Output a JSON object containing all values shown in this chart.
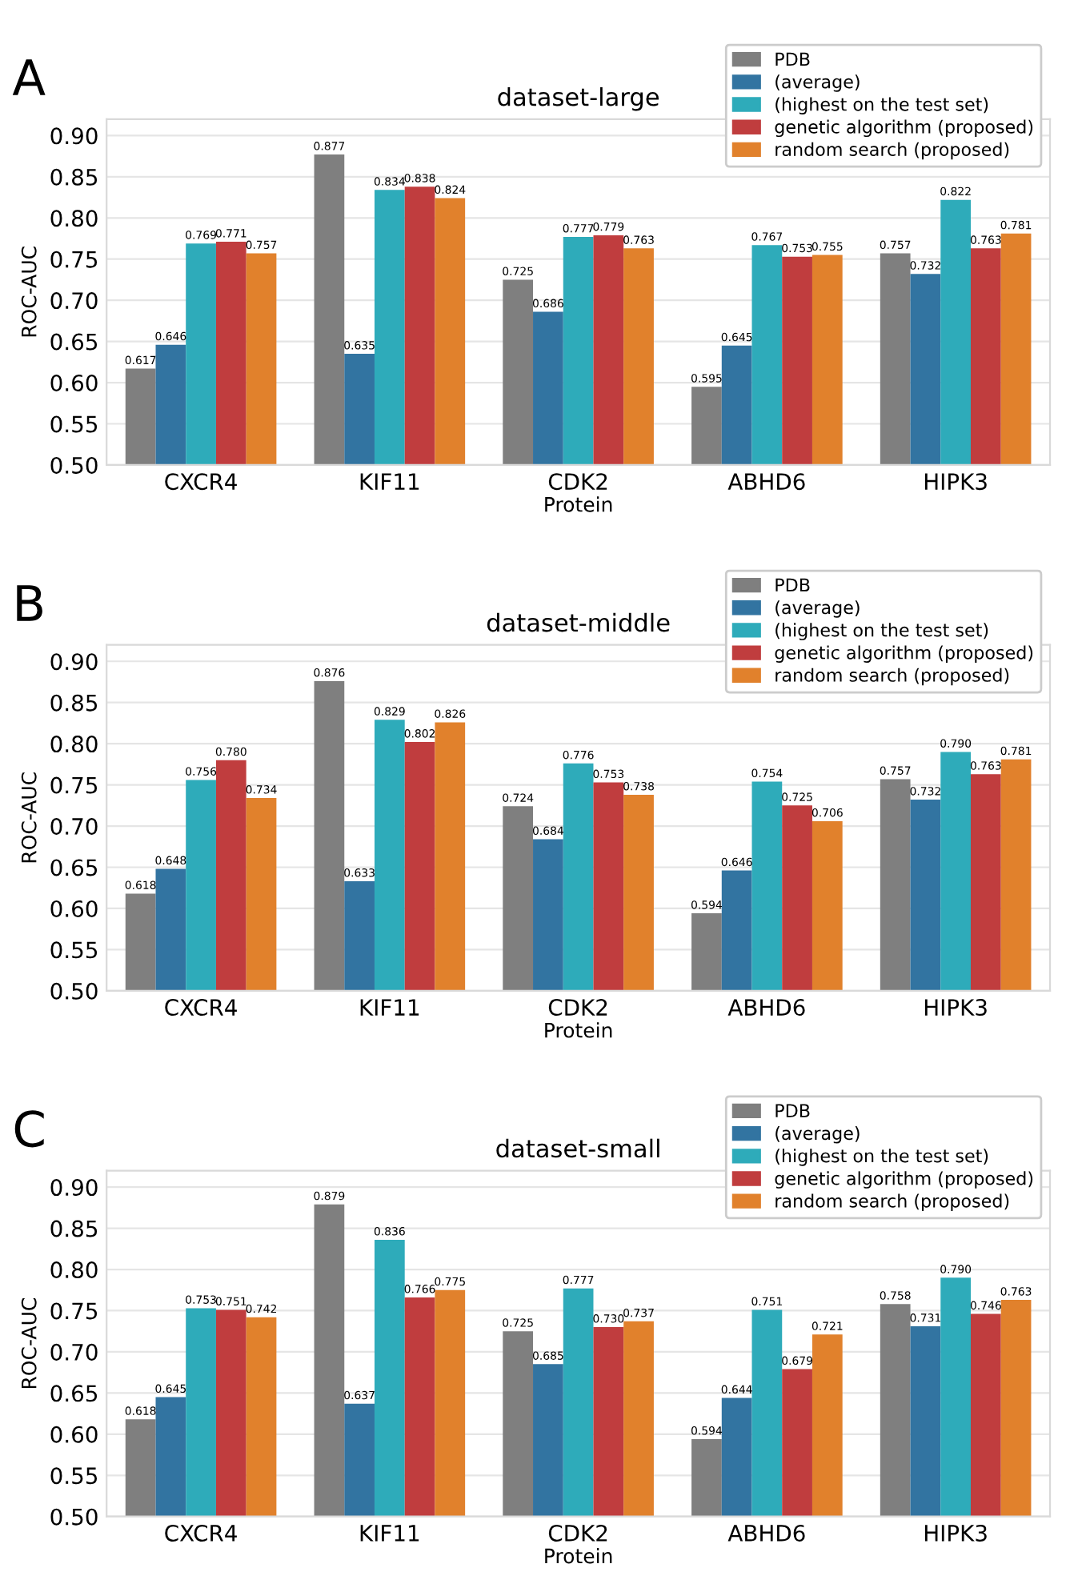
{
  "chart_data": [
    {
      "type": "bar",
      "title": "dataset-large",
      "xlabel": "Protein",
      "ylabel": "ROC-AUC",
      "annotations": [
        "A"
      ],
      "categories": [
        "CXCR4",
        "KIF11",
        "CDK2",
        "ABHD6",
        "HIPK3"
      ],
      "ylim": [
        0.5,
        0.92
      ],
      "yticks": [
        {
          "value": 0.5,
          "label": "0.50"
        },
        {
          "value": 0.55,
          "label": "0.55"
        },
        {
          "value": 0.6,
          "label": "0.60"
        },
        {
          "value": 0.65,
          "label": "0.65"
        },
        {
          "value": 0.7,
          "label": "0.70"
        },
        {
          "value": 0.75,
          "label": "0.75"
        },
        {
          "value": 0.8,
          "label": "0.80"
        },
        {
          "value": 0.85,
          "label": "0.85"
        },
        {
          "value": 0.9,
          "label": "0.90"
        }
      ],
      "grid": "y",
      "legend": "top right",
      "series": [
        {
          "name": "PDB",
          "color": "#7f7f7f",
          "values": [
            0.617,
            0.877,
            0.725,
            0.595,
            0.757
          ],
          "value_labels": [
            "0.617",
            "0.877",
            "0.725",
            "0.595",
            "0.757"
          ]
        },
        {
          "name": "(average)",
          "color": "#3274a1",
          "values": [
            0.646,
            0.635,
            0.686,
            0.645,
            0.732
          ],
          "value_labels": [
            "0.646",
            "0.635",
            "0.686",
            "0.645",
            "0.732"
          ]
        },
        {
          "name": "(highest on the test set)",
          "color": "#2eabba",
          "values": [
            0.769,
            0.834,
            0.777,
            0.767,
            0.822
          ],
          "value_labels": [
            "0.769",
            "0.834",
            "0.777",
            "0.767",
            "0.822"
          ]
        },
        {
          "name": "genetic algorithm (proposed)",
          "color": "#c03d3e",
          "values": [
            0.771,
            0.838,
            0.779,
            0.753,
            0.763
          ],
          "value_labels": [
            "0.771",
            "0.838",
            "0.779",
            "0.753",
            "0.763"
          ]
        },
        {
          "name": "random search (proposed)",
          "color": "#e1812c",
          "values": [
            0.757,
            0.824,
            0.763,
            0.755,
            0.781
          ],
          "value_labels": [
            "0.757",
            "0.824",
            "0.763",
            "0.755",
            "0.781"
          ]
        }
      ]
    },
    {
      "type": "bar",
      "title": "dataset-middle",
      "xlabel": "Protein",
      "ylabel": "ROC-AUC",
      "annotations": [
        "B"
      ],
      "categories": [
        "CXCR4",
        "KIF11",
        "CDK2",
        "ABHD6",
        "HIPK3"
      ],
      "ylim": [
        0.5,
        0.92
      ],
      "yticks": [
        {
          "value": 0.5,
          "label": "0.50"
        },
        {
          "value": 0.55,
          "label": "0.55"
        },
        {
          "value": 0.6,
          "label": "0.60"
        },
        {
          "value": 0.65,
          "label": "0.65"
        },
        {
          "value": 0.7,
          "label": "0.70"
        },
        {
          "value": 0.75,
          "label": "0.75"
        },
        {
          "value": 0.8,
          "label": "0.80"
        },
        {
          "value": 0.85,
          "label": "0.85"
        },
        {
          "value": 0.9,
          "label": "0.90"
        }
      ],
      "grid": "y",
      "legend": "top right",
      "series": [
        {
          "name": "PDB",
          "color": "#7f7f7f",
          "values": [
            0.618,
            0.876,
            0.724,
            0.594,
            0.757
          ],
          "value_labels": [
            "0.618",
            "0.876",
            "0.724",
            "0.594",
            "0.757"
          ]
        },
        {
          "name": "(average)",
          "color": "#3274a1",
          "values": [
            0.648,
            0.633,
            0.684,
            0.646,
            0.732
          ],
          "value_labels": [
            "0.648",
            "0.633",
            "0.684",
            "0.646",
            "0.732"
          ]
        },
        {
          "name": "(highest on the test set)",
          "color": "#2eabba",
          "values": [
            0.756,
            0.829,
            0.776,
            0.754,
            0.79
          ],
          "value_labels": [
            "0.756",
            "0.829",
            "0.776",
            "0.754",
            "0.790"
          ]
        },
        {
          "name": "genetic algorithm (proposed)",
          "color": "#c03d3e",
          "values": [
            0.78,
            0.802,
            0.753,
            0.725,
            0.763
          ],
          "value_labels": [
            "0.780",
            "0.802",
            "0.753",
            "0.725",
            "0.763"
          ]
        },
        {
          "name": "random search (proposed)",
          "color": "#e1812c",
          "values": [
            0.734,
            0.826,
            0.738,
            0.706,
            0.781
          ],
          "value_labels": [
            "0.734",
            "0.826",
            "0.738",
            "0.706",
            "0.781"
          ]
        }
      ]
    },
    {
      "type": "bar",
      "title": "dataset-small",
      "xlabel": "Protein",
      "ylabel": "ROC-AUC",
      "annotations": [
        "C"
      ],
      "categories": [
        "CXCR4",
        "KIF11",
        "CDK2",
        "ABHD6",
        "HIPK3"
      ],
      "ylim": [
        0.5,
        0.92
      ],
      "yticks": [
        {
          "value": 0.5,
          "label": "0.50"
        },
        {
          "value": 0.55,
          "label": "0.55"
        },
        {
          "value": 0.6,
          "label": "0.60"
        },
        {
          "value": 0.65,
          "label": "0.65"
        },
        {
          "value": 0.7,
          "label": "0.70"
        },
        {
          "value": 0.75,
          "label": "0.75"
        },
        {
          "value": 0.8,
          "label": "0.80"
        },
        {
          "value": 0.85,
          "label": "0.85"
        },
        {
          "value": 0.9,
          "label": "0.90"
        }
      ],
      "grid": "y",
      "legend": "top right",
      "series": [
        {
          "name": "PDB",
          "color": "#7f7f7f",
          "values": [
            0.618,
            0.879,
            0.725,
            0.594,
            0.758
          ],
          "value_labels": [
            "0.618",
            "0.879",
            "0.725",
            "0.594",
            "0.758"
          ]
        },
        {
          "name": "(average)",
          "color": "#3274a1",
          "values": [
            0.645,
            0.637,
            0.685,
            0.644,
            0.731
          ],
          "value_labels": [
            "0.645",
            "0.637",
            "0.685",
            "0.644",
            "0.731"
          ]
        },
        {
          "name": "(highest on the test set)",
          "color": "#2eabba",
          "values": [
            0.753,
            0.836,
            0.777,
            0.751,
            0.79
          ],
          "value_labels": [
            "0.753",
            "0.836",
            "0.777",
            "0.751",
            "0.790"
          ]
        },
        {
          "name": "genetic algorithm (proposed)",
          "color": "#c03d3e",
          "values": [
            0.751,
            0.766,
            0.73,
            0.679,
            0.746
          ],
          "value_labels": [
            "0.751",
            "0.766",
            "0.730",
            "0.679",
            "0.746"
          ]
        },
        {
          "name": "random search (proposed)",
          "color": "#e1812c",
          "values": [
            0.742,
            0.775,
            0.737,
            0.721,
            0.763
          ],
          "value_labels": [
            "0.742",
            "0.775",
            "0.737",
            "0.721",
            "0.763"
          ]
        }
      ]
    }
  ]
}
